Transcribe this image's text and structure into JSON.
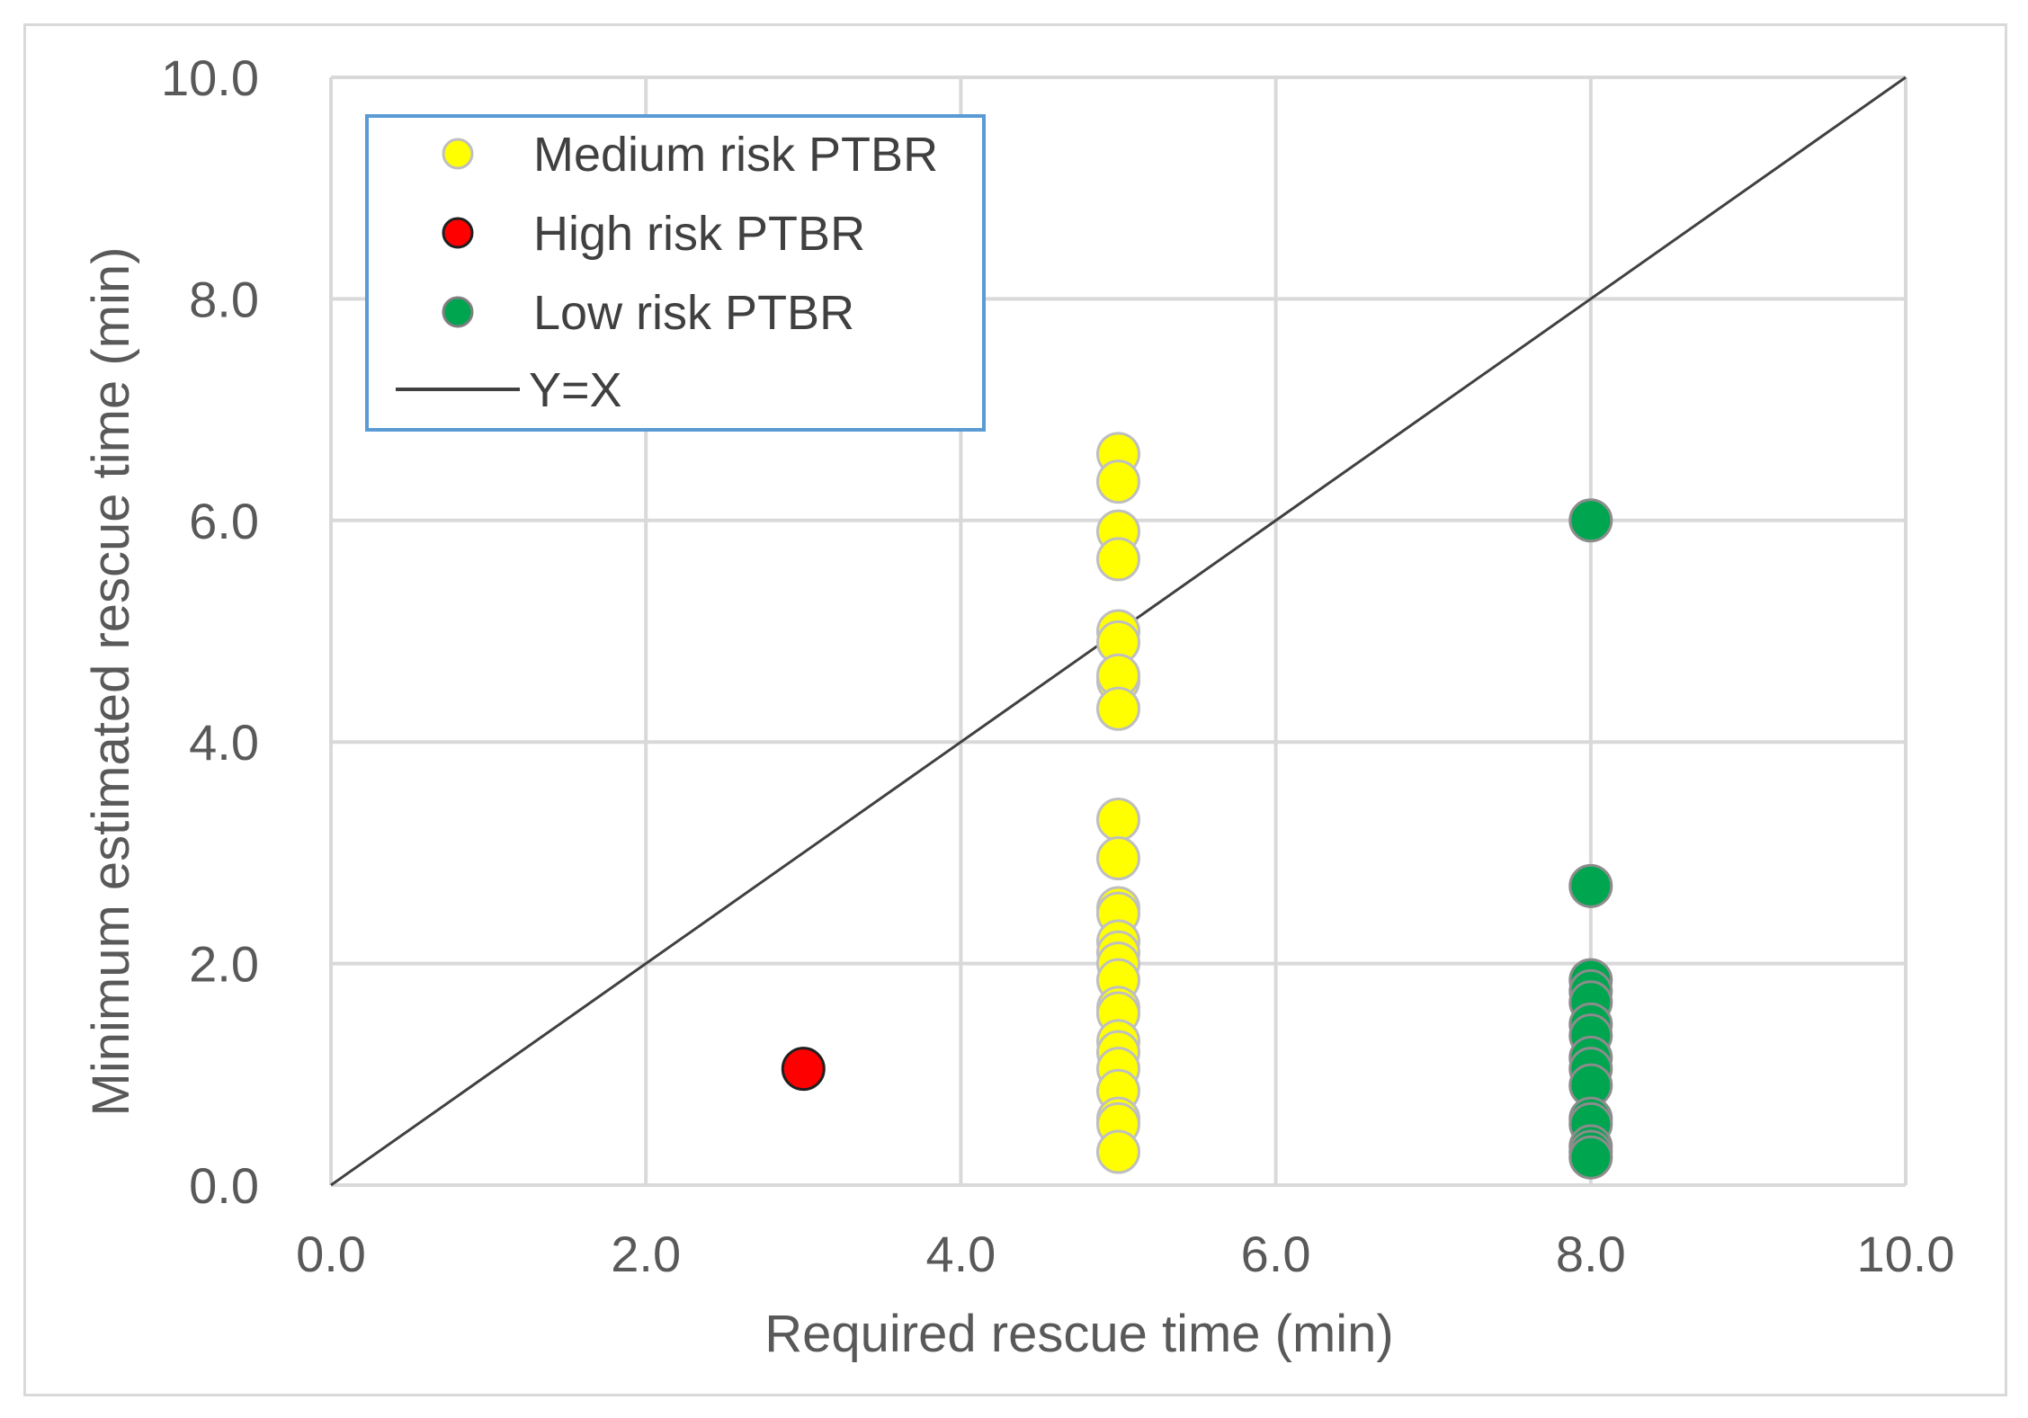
{
  "chart_data": {
    "type": "scatter",
    "title": "",
    "xlabel": "Required rescue time (min)",
    "ylabel": "Minimum estimated rescue time (min)",
    "xlim": [
      0,
      10
    ],
    "ylim": [
      0,
      10
    ],
    "xticks": [
      "0.0",
      "2.0",
      "4.0",
      "6.0",
      "8.0",
      "10.0"
    ],
    "yticks": [
      "0.0",
      "2.0",
      "4.0",
      "6.0",
      "8.0",
      "10.0"
    ],
    "grid": true,
    "legend_position": "top-left",
    "series": [
      {
        "name": "Medium risk PTBR",
        "color": "#ffff00",
        "points": [
          [
            5,
            6.6
          ],
          [
            5,
            6.35
          ],
          [
            5,
            5.9
          ],
          [
            5,
            5.65
          ],
          [
            5,
            5.0
          ],
          [
            5,
            4.9
          ],
          [
            5,
            4.55
          ],
          [
            5,
            4.6
          ],
          [
            5,
            4.3
          ],
          [
            5,
            3.3
          ],
          [
            5,
            2.95
          ],
          [
            5,
            2.5
          ],
          [
            5,
            2.45
          ],
          [
            5,
            2.2
          ],
          [
            5,
            2.1
          ],
          [
            5,
            2.0
          ],
          [
            5,
            1.85
          ],
          [
            5,
            1.6
          ],
          [
            5,
            1.55
          ],
          [
            5,
            1.3
          ],
          [
            5,
            1.2
          ],
          [
            5,
            1.05
          ],
          [
            5,
            0.85
          ],
          [
            5,
            0.6
          ],
          [
            5,
            0.55
          ],
          [
            5,
            0.3
          ]
        ]
      },
      {
        "name": "High risk PTBR",
        "color": "#ff0000",
        "points": [
          [
            3,
            1.05
          ]
        ]
      },
      {
        "name": "Low risk PTBR",
        "color": "#00a550",
        "points": [
          [
            8,
            6.0
          ],
          [
            8,
            2.7
          ],
          [
            8,
            1.85
          ],
          [
            8,
            1.75
          ],
          [
            8,
            1.65
          ],
          [
            8,
            1.45
          ],
          [
            8,
            1.35
          ],
          [
            8,
            1.15
          ],
          [
            8,
            1.05
          ],
          [
            8,
            0.9
          ],
          [
            8,
            0.6
          ],
          [
            8,
            0.55
          ],
          [
            8,
            0.35
          ],
          [
            8,
            0.3
          ],
          [
            8,
            0.25
          ]
        ]
      }
    ],
    "reference_line": {
      "name": "Y=X",
      "points": [
        [
          0,
          0
        ],
        [
          10,
          10
        ]
      ],
      "color": "#404040"
    }
  }
}
